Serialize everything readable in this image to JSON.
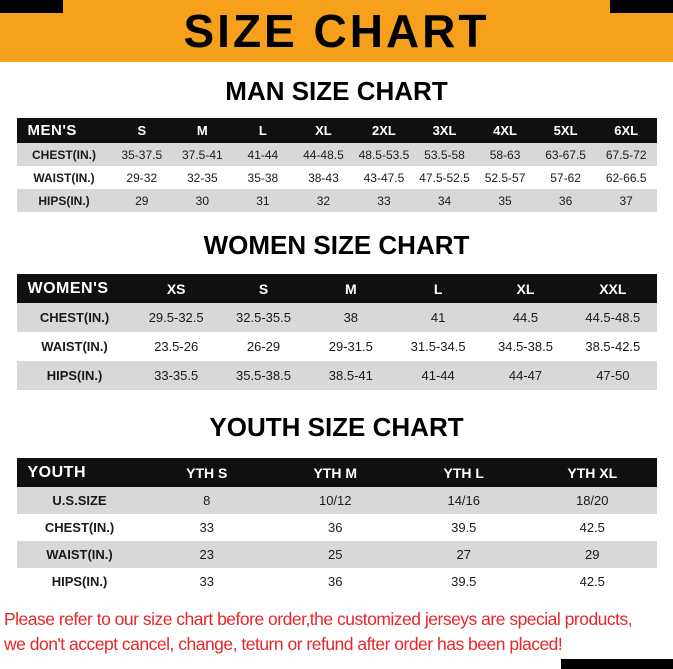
{
  "header": {
    "title": "SIZE CHART"
  },
  "colors": {
    "banner_bg": "#F6A01B",
    "table_header_bg": "#101010",
    "table_header_text": "#FFFFFF",
    "row_alt_bg": "#D8D8D8",
    "footer_text": "#E8262A"
  },
  "chart_data": [
    {
      "type": "table",
      "title": "MAN SIZE CHART",
      "columns": [
        "MEN'S",
        "S",
        "M",
        "L",
        "XL",
        "2XL",
        "3XL",
        "4XL",
        "5XL",
        "6XL"
      ],
      "rows": [
        [
          "CHEST(IN.)",
          "35-37.5",
          "37.5-41",
          "41-44",
          "44-48.5",
          "48.5-53.5",
          "53.5-58",
          "58-63",
          "63-67.5",
          "67.5-72"
        ],
        [
          "WAIST(IN.)",
          "29-32",
          "32-35",
          "35-38",
          "38-43",
          "43-47.5",
          "47.5-52.5",
          "52.5-57",
          "57-62",
          "62-66.5"
        ],
        [
          "HIPS(IN.)",
          "29",
          "30",
          "31",
          "32",
          "33",
          "34",
          "35",
          "36",
          "37"
        ]
      ]
    },
    {
      "type": "table",
      "title": "WOMEN SIZE CHART",
      "columns": [
        "WOMEN'S",
        "XS",
        "S",
        "M",
        "L",
        "XL",
        "XXL"
      ],
      "rows": [
        [
          "CHEST(IN.)",
          "29.5-32.5",
          "32.5-35.5",
          "38",
          "41",
          "44.5",
          "44.5-48.5"
        ],
        [
          "WAIST(IN.)",
          "23.5-26",
          "26-29",
          "29-31.5",
          "31.5-34.5",
          "34.5-38.5",
          "38.5-42.5"
        ],
        [
          "HIPS(IN.)",
          "33-35.5",
          "35.5-38.5",
          "38.5-41",
          "41-44",
          "44-47",
          "47-50"
        ]
      ]
    },
    {
      "type": "table",
      "title": "YOUTH SIZE CHART",
      "columns": [
        "YOUTH",
        "YTH S",
        "YTH M",
        "YTH L",
        "YTH XL"
      ],
      "rows": [
        [
          "U.S.SIZE",
          "8",
          "10/12",
          "14/16",
          "18/20"
        ],
        [
          "CHEST(IN.)",
          "33",
          "36",
          "39.5",
          "42.5"
        ],
        [
          "WAIST(IN.)",
          "23",
          "25",
          "27",
          "29"
        ],
        [
          "HIPS(IN.)",
          "33",
          "36",
          "39.5",
          "42.5"
        ]
      ]
    }
  ],
  "footer": {
    "line1": "Please refer to our size chart before order,the customized jerseys are special products,",
    "line2": "we don't accept cancel, change, teturn or refund after order has been placed!"
  }
}
